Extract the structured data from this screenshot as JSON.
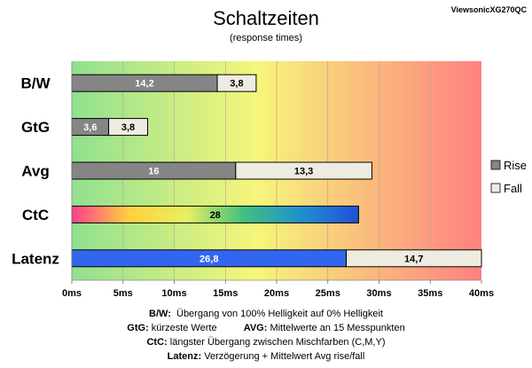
{
  "chart_data": {
    "type": "bar",
    "title": "Schaltzeiten",
    "subtitle": "(response times)",
    "model": "ViewsonicXG270QC",
    "categories": [
      "B/W",
      "GtG",
      "Avg",
      "CtC",
      "Latenz"
    ],
    "series": [
      {
        "name": "Rise",
        "values": [
          14.2,
          3.6,
          16,
          null,
          26.8
        ]
      },
      {
        "name": "Fall",
        "values": [
          3.8,
          3.8,
          13.3,
          null,
          14.7
        ]
      }
    ],
    "ctc": {
      "value": 28,
      "label": "28"
    },
    "value_labels": {
      "rise": [
        "14,2",
        "3,6",
        "16",
        "",
        "26,8"
      ],
      "fall": [
        "3,8",
        "3,8",
        "13,3",
        "",
        "14,7"
      ]
    },
    "x_ticks": [
      "0ms",
      "5ms",
      "10ms",
      "15ms",
      "20ms",
      "25ms",
      "30ms",
      "35ms",
      "40ms"
    ],
    "xlim": [
      0,
      40
    ],
    "legend": {
      "placement": "right",
      "items": [
        "Rise",
        "Fall"
      ]
    },
    "colors": {
      "rise": "#858585",
      "fall": "#eeece1",
      "latenz_rise": "#3366ee",
      "bg_start": "#90e090",
      "bg_mid": "#f6f67a",
      "bg_end": "#ff8080",
      "ctc_gradient": [
        "#ff3e8e",
        "#ffd040",
        "#e8f060",
        "#40c080",
        "#2090d0",
        "#2050d8"
      ]
    }
  },
  "notes": {
    "line1": {
      "key": "B/W",
      "text": "Übergang von 100% Helligkeit auf 0% Helligkeit"
    },
    "line2": {
      "key1": "GtG",
      "text1": "kürzeste Werte",
      "key2": "AVG:",
      "text2": "Mittelwerte an 15 Messpunkten"
    },
    "line3": {
      "key": "CtC",
      "text": "längster Übergang zwischen Mischfarben (C,M,Y)"
    },
    "line4": {
      "key": "Latenz",
      "text": "Verzögerung + Mittelwert Avg rise/fall"
    }
  }
}
